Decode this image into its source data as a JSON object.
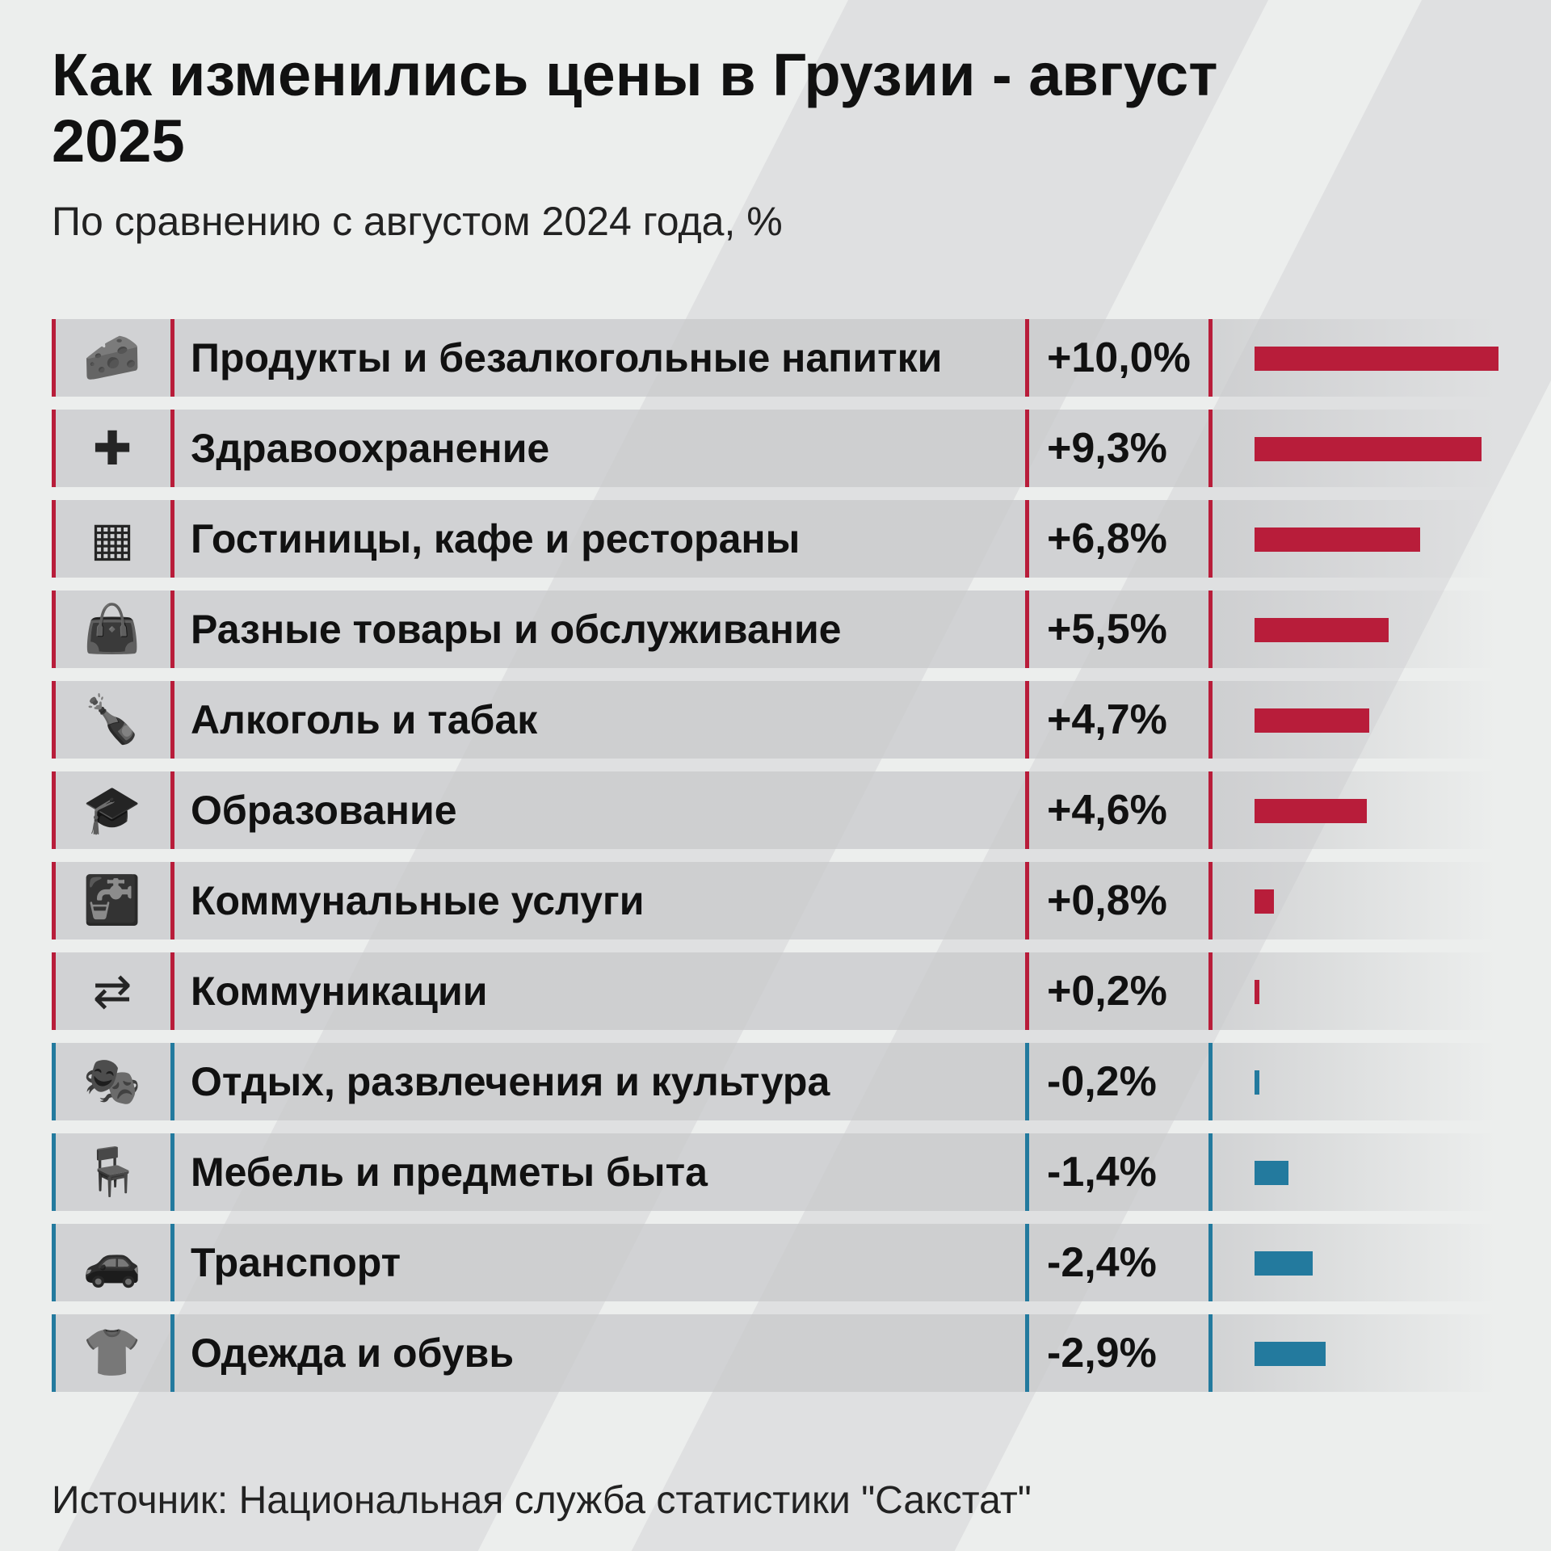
{
  "title": "Как изменились цены в Грузии - август 2025",
  "subtitle": "По сравнению с августом 2024 года, %",
  "source": "Источник: Национальная служба статистики \"Сакстат\"",
  "colors": {
    "positive": "#b81d3a",
    "negative": "#237a9e"
  },
  "chart_data": {
    "type": "bar",
    "orientation": "horizontal",
    "title": "Как изменились цены в Грузии - август 2025",
    "subtitle": "По сравнению с августом 2024 года, %",
    "categories": [
      "Продукты и безалкогольные напитки",
      "Здравоохранение",
      "Гостиницы, кафе и рестораны",
      "Разные товары и обслуживание",
      "Алкоголь и табак",
      "Образование",
      "Коммунальные услуги",
      "Коммуникации",
      "Отдых, развлечения и культура",
      "Мебель и предметы быта",
      "Транспорт",
      "Одежда и обувь"
    ],
    "values": [
      10.0,
      9.3,
      6.8,
      5.5,
      4.7,
      4.6,
      0.8,
      0.2,
      -0.2,
      -1.4,
      -2.4,
      -2.9
    ],
    "labels": [
      "+10,0%",
      "+9,3%",
      "+6,8%",
      "+5,5%",
      "+4,7%",
      "+4,6%",
      "+0,8%",
      "+0,2%",
      "-0,2%",
      "-1,4%",
      "-2,4%",
      "-2,9%"
    ],
    "icons": [
      "groceries-icon",
      "healthcare-hand-icon",
      "building-icon",
      "shopping-bag-icon",
      "bottle-icon",
      "graduate-icon",
      "faucet-icon",
      "communication-icon",
      "theater-masks-icon",
      "chair-icon",
      "car-icon",
      "tshirt-icon"
    ]
  }
}
